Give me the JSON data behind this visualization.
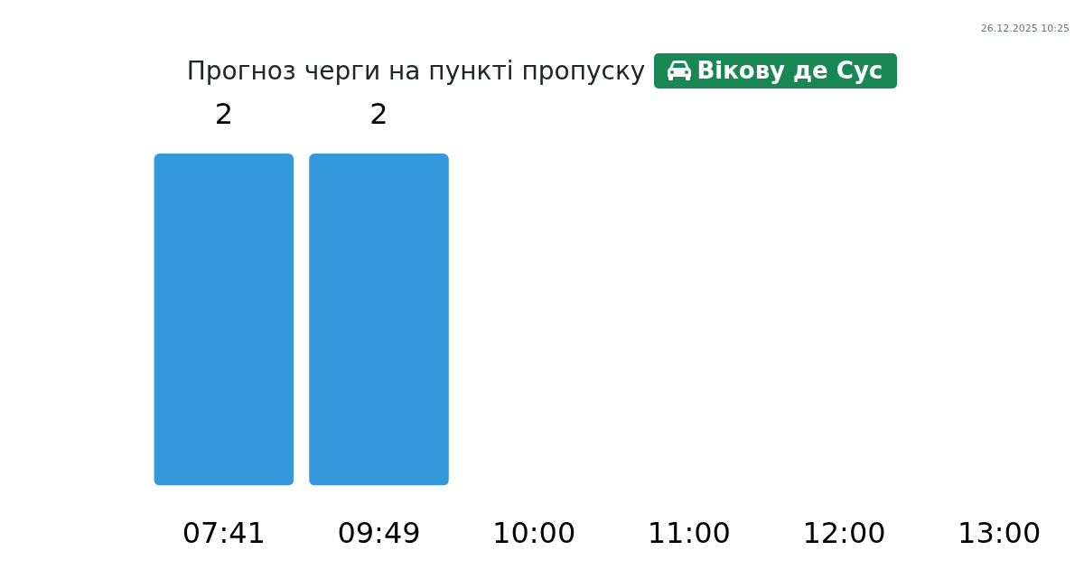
{
  "chart_data": {
    "type": "bar",
    "title": "Прогноз черги на пункті пропуску",
    "subtitle": "Вікову де Сус",
    "categories": [
      "07:41",
      "09:49",
      "10:00",
      "11:00",
      "12:00",
      "13:00"
    ],
    "values": [
      2,
      2,
      null,
      null,
      null,
      null
    ],
    "color": "#3598db",
    "data_labels": true,
    "annotations": [
      "26.12.2025 10:25"
    ]
  }
}
